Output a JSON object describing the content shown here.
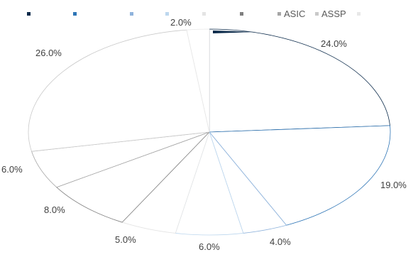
{
  "chart_data": {
    "type": "pie",
    "title": "",
    "legend_position": "top",
    "legend": [
      {
        "name": "",
        "color": "#0b2a4a"
      },
      {
        "name": "",
        "color": "#2e75b6"
      },
      {
        "name": "",
        "color": "#8fb3dc"
      },
      {
        "name": "",
        "color": "#bdd7ee"
      },
      {
        "name": "",
        "color": "#e4e4e4"
      },
      {
        "name": "",
        "color": "#7f7f7f"
      },
      {
        "name": "ASIC",
        "color": "#a6a6a6"
      },
      {
        "name": "ASSP",
        "color": "#c9c9c9"
      },
      {
        "name": "",
        "color": "#e8e8e8"
      }
    ],
    "slices": [
      {
        "value": 24.0,
        "label": "24.0%",
        "color": "#0b2a4a"
      },
      {
        "value": 19.0,
        "label": "19.0%",
        "color": "#2e75b6"
      },
      {
        "value": 4.0,
        "label": "4.0%",
        "color": "#8fb3dc"
      },
      {
        "value": 6.0,
        "label": "6.0%",
        "color": "#bdd7ee"
      },
      {
        "value": 5.0,
        "label": "5.0%",
        "color": "#e4e4e4"
      },
      {
        "value": 8.0,
        "label": "8.0%",
        "color": "#7f7f7f"
      },
      {
        "value": 6.0,
        "label": "6.0%",
        "color": "#a6a6a6"
      },
      {
        "value": 26.0,
        "label": "26.0%",
        "color": "#c9c9c9"
      },
      {
        "value": 2.0,
        "label": "2.0%",
        "color": "#e8e8e8"
      }
    ]
  }
}
